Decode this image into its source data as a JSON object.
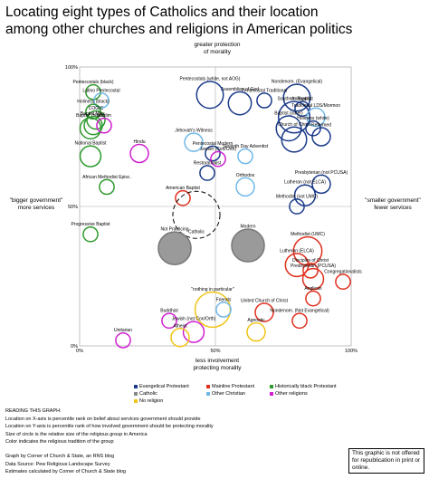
{
  "title_lines": [
    "Locating eight types of Catholics and their location",
    "among other churches and religions in American politics"
  ],
  "axis_labels": {
    "top": [
      "greater protection",
      "of morality"
    ],
    "bottom": [
      "less involvement",
      "protecting morality"
    ],
    "left": [
      "\"bigger government\"",
      "more services"
    ],
    "right": [
      "\"smaller government\"",
      "fewer services"
    ]
  },
  "legend": [
    {
      "label": "Evangelical Protestant",
      "color": "#1a3a8a"
    },
    {
      "label": "Mainline Protestant",
      "color": "#e0301e"
    },
    {
      "label": "Historically black Protestant",
      "color": "#2e9a2e"
    },
    {
      "label": "Catholic",
      "color": "#888888"
    },
    {
      "label": "Other Christian",
      "color": "#6fb8e8"
    },
    {
      "label": "Other religions",
      "color": "#d01fd0"
    },
    {
      "label": "No religion",
      "color": "#f0c419"
    }
  ],
  "reading_title": "READING THIS GRAPH:",
  "reading_lines": [
    "Location on X-axis is percentile rank on belief about services government should provide",
    "Location on Y-axis is percentile rank of how involved government should be protecting morality",
    "Size of circle is the relative size of the religious group in America",
    "Color indicates the religious tradition of the group"
  ],
  "credit_lines": [
    "Graph by Corner of Church & State, an RNS blog",
    "Data Source: Pew Religious Landscape Survey",
    "Estimates calculated by Corner of Church & State blog"
  ],
  "notice": "This graphic is not offered for republication in print or online.",
  "chart_data": {
    "type": "scatter",
    "title": "Locating eight types of Catholics and their location among other churches and religions in American politics",
    "xlabel": "",
    "ylabel": "",
    "xlim": [
      0,
      100
    ],
    "ylim": [
      0,
      100
    ],
    "x_ticks": [
      "0%",
      "50%",
      "100%"
    ],
    "y_ticks": [
      "0%",
      "50%",
      "100%"
    ],
    "size_meaning": "relative size of the religious group in America",
    "points": [
      {
        "label": "Assemblies of God",
        "x": 59,
        "y": 87,
        "size": 4,
        "tradition": "evangelical"
      },
      {
        "label": "Pentecostals (black)",
        "x": 5,
        "y": 91,
        "size": 1,
        "tradition": "black"
      },
      {
        "label": "Latino Pentecostal",
        "x": 8,
        "y": 88,
        "size": 1,
        "tradition": "other_christian"
      },
      {
        "label": "Holiness (black)",
        "x": 5,
        "y": 84,
        "size": 1,
        "tradition": "black"
      },
      {
        "label": "COGIC",
        "x": 6,
        "y": 81,
        "size": 2,
        "tradition": "black"
      },
      {
        "label": "Baptist (black)",
        "x": 4,
        "y": 78,
        "size": 3,
        "tradition": "black"
      },
      {
        "label": "Baptist Miss.",
        "x": 5,
        "y": 79,
        "size": 2,
        "tradition": "black"
      },
      {
        "label": "Muslim",
        "x": 9,
        "y": 79,
        "size": 1,
        "tradition": "other_religions"
      },
      {
        "label": "Pentecostals (white, not AOG)",
        "x": 48,
        "y": 90,
        "size": 6,
        "tradition": "evangelical"
      },
      {
        "label": "Nondenom. (Evangelical)",
        "x": 80,
        "y": 89,
        "size": 6,
        "tradition": "evangelical"
      },
      {
        "label": "Pentecostal Traditional",
        "x": 68,
        "y": 88,
        "size": 1,
        "tradition": "evangelical"
      },
      {
        "label": "Anabaptist",
        "x": 82,
        "y": 85,
        "size": 1,
        "tradition": "evangelical"
      },
      {
        "label": "Southern Baptist",
        "x": 79,
        "y": 82,
        "size": 9,
        "tradition": "evangelical"
      },
      {
        "label": "Traditional LDS/Mormon",
        "x": 87,
        "y": 82,
        "size": 2,
        "tradition": "other_christian"
      },
      {
        "label": "Holiness (white)",
        "x": 86,
        "y": 78,
        "size": 1,
        "tradition": "evangelical"
      },
      {
        "label": "Baptist (other)",
        "x": 77,
        "y": 78,
        "size": 5,
        "tradition": "evangelical"
      },
      {
        "label": "Church of Christ",
        "x": 79,
        "y": 74,
        "size": 5,
        "tradition": "evangelical"
      },
      {
        "label": "Reformed",
        "x": 89,
        "y": 75,
        "size": 2,
        "tradition": "evangelical"
      },
      {
        "label": "National Baptist",
        "x": 4,
        "y": 68,
        "size": 3,
        "tradition": "black"
      },
      {
        "label": "Hindu",
        "x": 22,
        "y": 69,
        "size": 2,
        "tradition": "other_religions"
      },
      {
        "label": "Jehovah's Witness",
        "x": 42,
        "y": 73,
        "size": 2,
        "tradition": "other_christian"
      },
      {
        "label": "Pentecostal Modern",
        "x": 49,
        "y": 69,
        "size": 1,
        "tradition": "evangelical"
      },
      {
        "label": "Jewish (Con/Orth)",
        "x": 51,
        "y": 67,
        "size": 1,
        "tradition": "other_religions"
      },
      {
        "label": "Seventh Day Adventist",
        "x": 61,
        "y": 68,
        "size": 1,
        "tradition": "other_christian"
      },
      {
        "label": "Restorationist",
        "x": 47,
        "y": 62,
        "size": 1,
        "tradition": "evangelical"
      },
      {
        "label": "Orthodox",
        "x": 61,
        "y": 57,
        "size": 2,
        "tradition": "other_christian"
      },
      {
        "label": "African Methodist Episc.",
        "x": 10,
        "y": 57,
        "size": 1,
        "tradition": "black"
      },
      {
        "label": "Presbyterian (not PCUSA)",
        "x": 89,
        "y": 58,
        "size": 2,
        "tradition": "evangelical"
      },
      {
        "label": "Lutheran (not ELCA)",
        "x": 83,
        "y": 54,
        "size": 3,
        "tradition": "evangelical"
      },
      {
        "label": "Methodist (not UMC)",
        "x": 80,
        "y": 50,
        "size": 1,
        "tradition": "evangelical"
      },
      {
        "label": "American Baptist",
        "x": 38,
        "y": 53,
        "size": 1,
        "tradition": "mainline"
      },
      {
        "label": "Catholic",
        "x": 43,
        "y": 47,
        "size": 24,
        "tradition": "catholic"
      },
      {
        "label": "Not Practicing",
        "x": 35,
        "y": 35,
        "size": 10,
        "tradition": "catholic"
      },
      {
        "label": "Modern",
        "x": 62,
        "y": 36,
        "size": 10,
        "tradition": "catholic"
      },
      {
        "label": "Methodist (UMC)",
        "x": 84,
        "y": 34,
        "size": 7,
        "tradition": "mainline"
      },
      {
        "label": "Lutheran (ELCA)",
        "x": 80,
        "y": 29,
        "size": 4,
        "tradition": "mainline"
      },
      {
        "label": "Disciples of Christ",
        "x": 85,
        "y": 27,
        "size": 1,
        "tradition": "mainline"
      },
      {
        "label": "Presbyterian (PCUSA)",
        "x": 86,
        "y": 24,
        "size": 3,
        "tradition": "mainline"
      },
      {
        "label": "Congregationalists",
        "x": 97,
        "y": 23,
        "size": 1,
        "tradition": "mainline"
      },
      {
        "label": "Progressive Baptist",
        "x": 4,
        "y": 40,
        "size": 1,
        "tradition": "black"
      },
      {
        "label": "\"nothing in particular\"",
        "x": 49,
        "y": 13,
        "size": 12,
        "tradition": "no_religion"
      },
      {
        "label": "Anglican",
        "x": 86,
        "y": 17,
        "size": 1,
        "tradition": "mainline"
      },
      {
        "label": "Friends",
        "x": 53,
        "y": 13,
        "size": 1,
        "tradition": "other_christian"
      },
      {
        "label": "United Church of Christ",
        "x": 68,
        "y": 12,
        "size": 2,
        "tradition": "mainline"
      },
      {
        "label": "Buddhist",
        "x": 33,
        "y": 9,
        "size": 1,
        "tradition": "other_religions"
      },
      {
        "label": "Jewish (not Con/Orth)",
        "x": 42,
        "y": 5,
        "size": 3,
        "tradition": "other_religions"
      },
      {
        "label": "Nondenom. (Not Evangelical)",
        "x": 81,
        "y": 9,
        "size": 1,
        "tradition": "mainline"
      },
      {
        "label": "Agnostic",
        "x": 65,
        "y": 5,
        "size": 2,
        "tradition": "no_religion"
      },
      {
        "label": "Atheist",
        "x": 37,
        "y": 3,
        "size": 2,
        "tradition": "no_religion"
      },
      {
        "label": "Unitarian",
        "x": 16,
        "y": 2,
        "size": 1,
        "tradition": "other_religions"
      }
    ]
  },
  "colors": {
    "evangelical": "#1a3a8a",
    "mainline": "#e0301e",
    "black": "#2e9a2e",
    "catholic": "#888888",
    "other_christian": "#6fb8e8",
    "other_religions": "#d01fd0",
    "no_religion": "#f0c419"
  }
}
